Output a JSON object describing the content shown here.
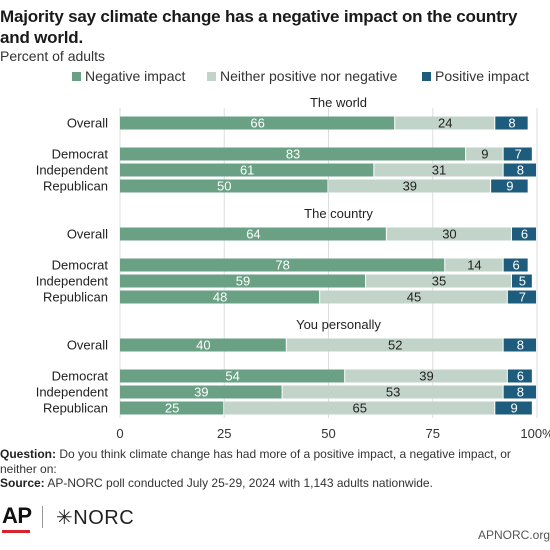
{
  "title": "Majority say climate change has a negative impact on the country and world.",
  "subtitle": "Percent of adults",
  "colors": {
    "negative": "#6aa184",
    "neither": "#c2d3c9",
    "positive": "#1d5c7c"
  },
  "chart_data": {
    "type": "bar",
    "orientation": "horizontal",
    "stacked": true,
    "legend_position": "top",
    "xlim": [
      0,
      100
    ],
    "xticks": [
      "0",
      "25",
      "50",
      "75",
      "100%"
    ],
    "series": [
      {
        "name": "Negative impact"
      },
      {
        "name": "Neither positive nor negative"
      },
      {
        "name": "Positive impact"
      }
    ],
    "groups": [
      {
        "label": "The world",
        "rows": [
          {
            "category": "Overall",
            "values": [
              66,
              24,
              8
            ]
          },
          {
            "category": "Democrat",
            "values": [
              83,
              9,
              7
            ]
          },
          {
            "category": "Independent",
            "values": [
              61,
              31,
              8
            ]
          },
          {
            "category": "Republican",
            "values": [
              50,
              39,
              9
            ]
          }
        ]
      },
      {
        "label": "The country",
        "rows": [
          {
            "category": "Overall",
            "values": [
              64,
              30,
              6
            ]
          },
          {
            "category": "Democrat",
            "values": [
              78,
              14,
              6
            ]
          },
          {
            "category": "Independent",
            "values": [
              59,
              35,
              5
            ]
          },
          {
            "category": "Republican",
            "values": [
              48,
              45,
              7
            ]
          }
        ]
      },
      {
        "label": "You personally",
        "rows": [
          {
            "category": "Overall",
            "values": [
              40,
              52,
              8
            ]
          },
          {
            "category": "Democrat",
            "values": [
              54,
              39,
              6
            ]
          },
          {
            "category": "Independent",
            "values": [
              39,
              53,
              8
            ]
          },
          {
            "category": "Republican",
            "values": [
              25,
              65,
              9
            ]
          }
        ]
      }
    ]
  },
  "footer": {
    "question_label": "Question:",
    "question_text": "Do you think climate change has had more of a positive impact, a negative impact, or neither on:",
    "source_label": "Source:",
    "source_text": "AP-NORC poll conducted July 25-29, 2024 with 1,143 adults nationwide."
  },
  "logos": {
    "ap": "AP",
    "norc": "NORC"
  },
  "site": "APNORC.org"
}
